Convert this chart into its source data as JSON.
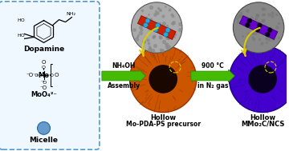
{
  "bg_color": "#ffffff",
  "box_color": "#5599cc",
  "box_bg": "#f0f8ff",
  "title": "Dopamine",
  "moo4_label": "MoO₄²⁻",
  "micelle_label": "Micelle",
  "arrow1_label1": "NH₄OH",
  "arrow1_label2": "Assembly",
  "arrow2_label1": "900 °C",
  "arrow2_label2": "in N₂ gas",
  "hollow_label1": "Hollow",
  "hollow_label2": "Mo-PDA-PS precursor",
  "hollow_label3": "Hollow",
  "hollow_label4": "MMo₂C/NCS",
  "orange_sphere_color": "#cc5500",
  "purple_sphere_color": "#4400cc",
  "nanosheet_red": "#cc2200",
  "nanosheet_purple": "#6600cc",
  "arrow_color": "#44bb00",
  "arrow_head_color": "#228800",
  "yellow_arrow_color": "#ddcc00",
  "dot_color": "#22aadd",
  "text_color": "#000000",
  "bold_label_color": "#000000",
  "figsize": [
    3.6,
    1.89
  ],
  "dpi": 100
}
